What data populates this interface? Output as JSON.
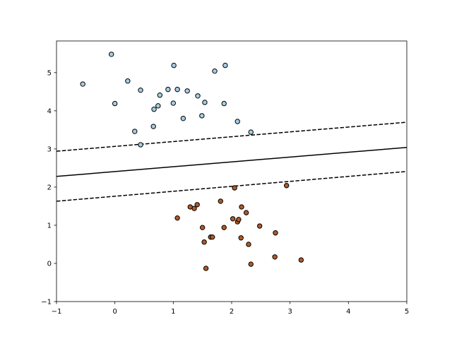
{
  "chart_data": {
    "type": "scatter",
    "xlim": [
      -1,
      5
    ],
    "ylim": [
      -1,
      5.83
    ],
    "xticks": [
      {
        "value": -1,
        "label": "−1"
      },
      0,
      1,
      2,
      3,
      4,
      5
    ],
    "yticks": [
      {
        "value": -1,
        "label": "−1"
      },
      0,
      1,
      2,
      3,
      4,
      5
    ],
    "series": [
      {
        "type": "scatter",
        "color": "#a6cee3",
        "x": [
          -0.06,
          -0.55,
          0.0,
          0.22,
          0.44,
          0.77,
          0.91,
          1.07,
          1.24,
          1.01,
          0.67,
          0.74,
          1.0,
          1.42,
          1.54,
          1.71,
          1.89,
          1.87,
          1.49,
          1.17,
          0.66,
          0.34,
          0.44,
          2.1,
          2.33
        ],
        "values": [
          5.48,
          4.7,
          4.19,
          4.78,
          4.54,
          4.41,
          4.56,
          4.56,
          4.52,
          5.19,
          4.04,
          4.13,
          4.2,
          4.39,
          4.22,
          5.04,
          5.19,
          4.19,
          3.87,
          3.8,
          3.59,
          3.46,
          3.11,
          3.72,
          3.44
        ]
      },
      {
        "type": "scatter",
        "color": "#b15928",
        "x": [
          2.05,
          2.94,
          1.07,
          1.29,
          1.36,
          1.41,
          1.81,
          2.17,
          2.25,
          2.02,
          2.1,
          2.12,
          1.5,
          1.87,
          2.48,
          2.75,
          1.53,
          1.64,
          1.67,
          2.16,
          2.29,
          2.74,
          3.19,
          2.33,
          1.56
        ],
        "values": [
          1.98,
          2.04,
          1.19,
          1.48,
          1.44,
          1.54,
          1.63,
          1.48,
          1.33,
          1.17,
          1.09,
          1.15,
          0.94,
          0.94,
          0.98,
          0.8,
          0.56,
          0.69,
          0.69,
          0.67,
          0.5,
          0.17,
          0.09,
          -0.02,
          -0.13
        ]
      },
      {
        "type": "line",
        "color": "#000000",
        "dashed": false,
        "x": [
          -1,
          5
        ],
        "values": [
          2.28,
          3.04
        ]
      },
      {
        "type": "line",
        "color": "#000000",
        "dashed": true,
        "x": [
          -1,
          5
        ],
        "values": [
          2.94,
          3.7
        ]
      },
      {
        "type": "line",
        "color": "#000000",
        "dashed": true,
        "x": [
          -1,
          5
        ],
        "values": [
          1.63,
          2.41
        ]
      }
    ]
  }
}
